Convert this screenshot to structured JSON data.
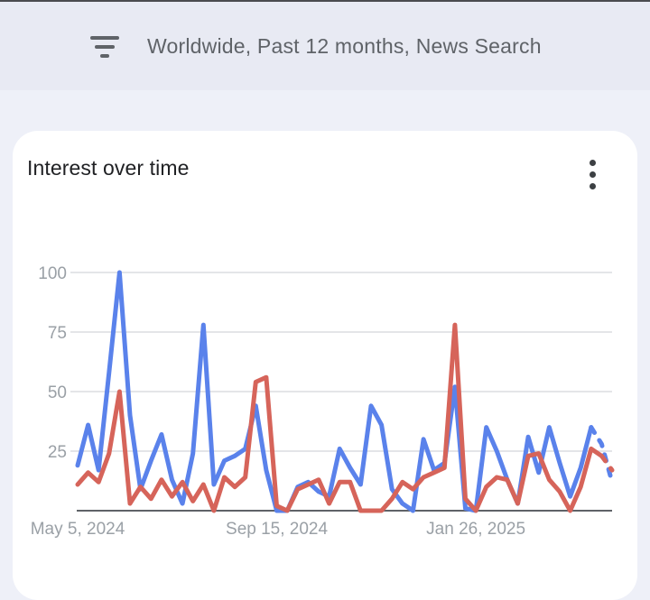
{
  "header": {
    "filter_text": "Worldwide, Past 12 months, News Search"
  },
  "card": {
    "title": "Interest over time"
  },
  "chart_data": {
    "type": "line",
    "title": "Interest over time",
    "x_unit": "week",
    "num_points": 52,
    "x_tick_labels": [
      {
        "label": "May 5, 2024",
        "week_index": 0
      },
      {
        "label": "Sep 15, 2024",
        "week_index": 19
      },
      {
        "label": "Jan 26, 2025",
        "week_index": 38
      }
    ],
    "y_ticks": [
      25,
      50,
      75,
      100
    ],
    "ylim": [
      0,
      100
    ],
    "grid": true,
    "legend": "none",
    "series": [
      {
        "name": "series-blue",
        "color": "#5a82eb",
        "dashed_from_index": 49,
        "values": [
          19,
          36,
          17,
          58,
          100,
          40,
          9,
          21,
          32,
          13,
          3,
          24,
          78,
          11,
          21,
          23,
          26,
          44,
          17,
          0,
          0,
          10,
          12,
          8,
          6,
          26,
          18,
          11,
          44,
          36,
          9,
          3,
          0,
          30,
          17,
          20,
          52,
          1,
          0,
          35,
          25,
          13,
          3,
          31,
          16,
          35,
          20,
          6,
          18,
          35,
          28,
          12
        ]
      },
      {
        "name": "series-red",
        "color": "#d6645a",
        "dashed_from_index": 50,
        "values": [
          11,
          16,
          12,
          24,
          50,
          3,
          10,
          5,
          13,
          6,
          12,
          4,
          11,
          0,
          14,
          10,
          14,
          54,
          56,
          2,
          0,
          9,
          11,
          13,
          3,
          12,
          12,
          0,
          0,
          0,
          5,
          12,
          9,
          14,
          16,
          18,
          78,
          5,
          0,
          10,
          14,
          13,
          3,
          23,
          24,
          13,
          8,
          0,
          10,
          26,
          23,
          17
        ]
      }
    ]
  },
  "colors": {
    "band_background": "#e8eaf3",
    "page_background": "#eef0f8",
    "card_background": "#ffffff",
    "header_text": "#5f6368",
    "title_text": "#202124",
    "axis_label": "#9aa0a6",
    "gridline": "#e4e5e8",
    "axis_line": "#5f6368",
    "series_blue": "#5a82eb",
    "series_red": "#d6645a"
  }
}
